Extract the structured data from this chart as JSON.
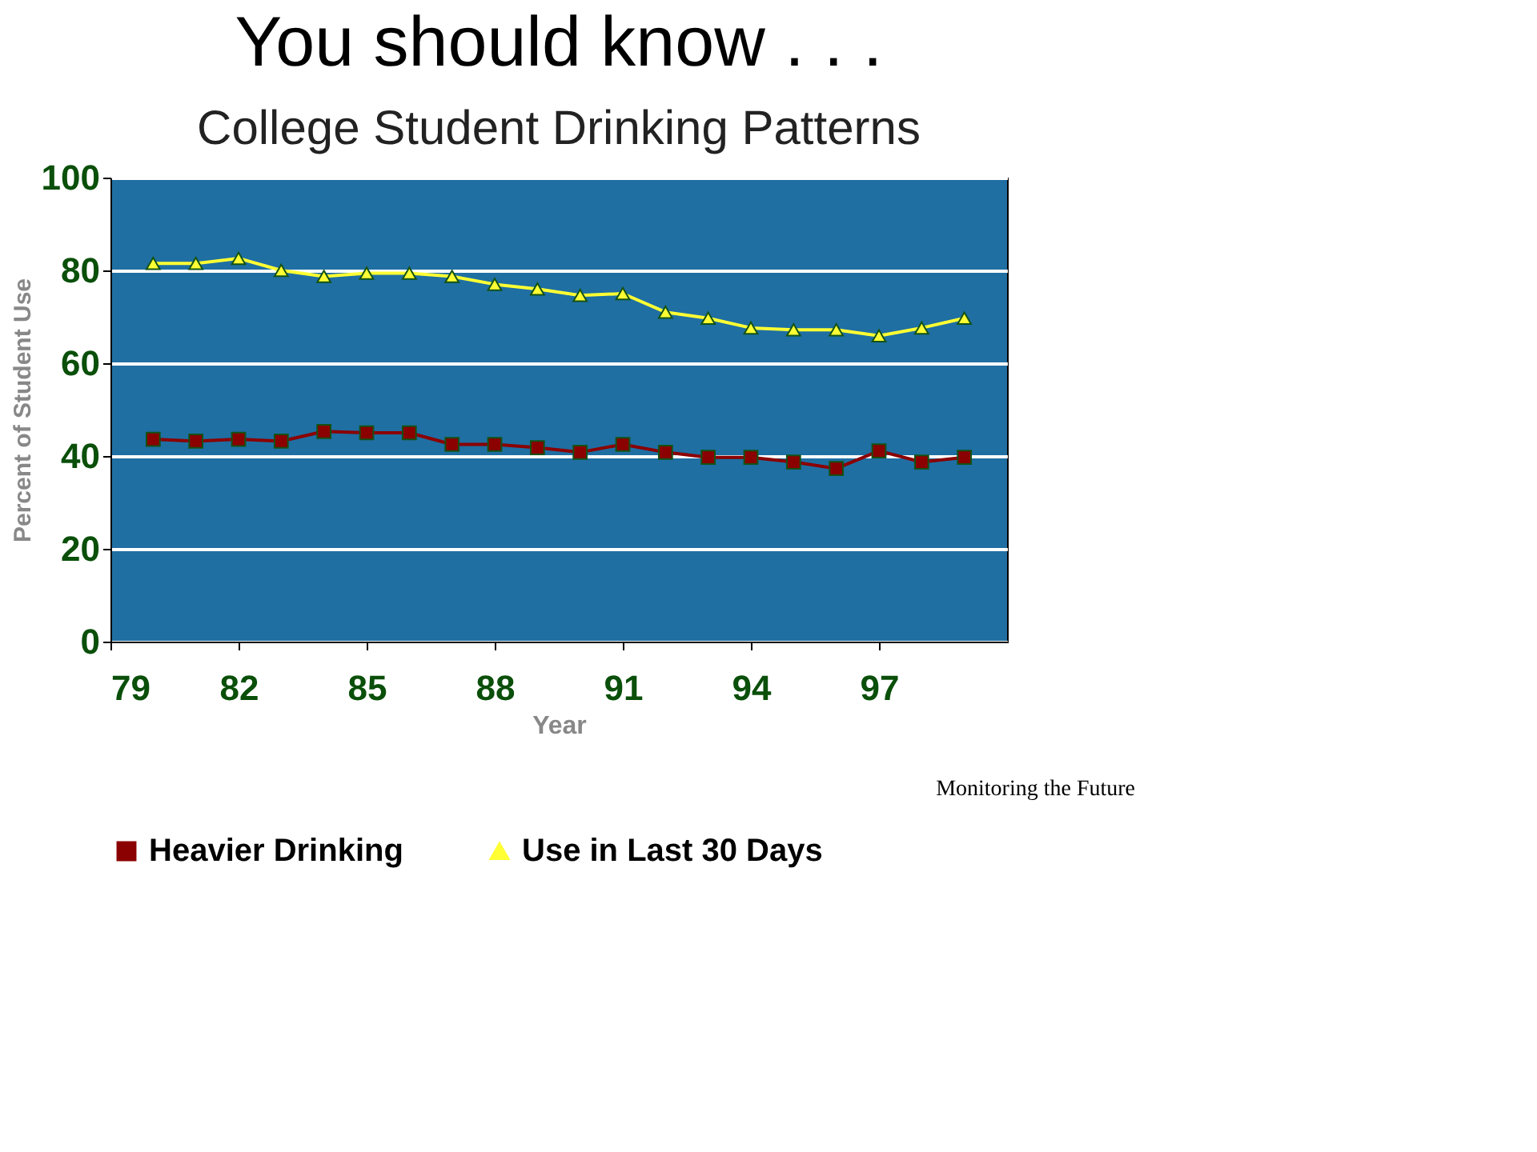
{
  "chart_data": {
    "type": "line",
    "title": "You should know . . .",
    "subtitle": "College Student Drinking Patterns",
    "xlabel": "Year",
    "ylabel": "Percent of Student Use",
    "x": [
      80,
      81,
      82,
      83,
      84,
      85,
      86,
      87,
      88,
      89,
      90,
      91,
      92,
      93,
      94,
      95,
      96,
      97,
      98,
      99
    ],
    "series": [
      {
        "name": "Heavier Drinking",
        "color": "#8b0000",
        "marker": "square",
        "values": [
          43.6,
          43.2,
          43.6,
          43.2,
          45.3,
          45,
          45,
          42.5,
          42.5,
          41.8,
          40.8,
          42.5,
          40.8,
          39.7,
          39.7,
          38.7,
          37.3,
          41.1,
          38.7,
          39.7
        ]
      },
      {
        "name": "Use in Last 30 Days",
        "color": "#ffff33",
        "marker": "triangle",
        "values": [
          81.5,
          81.5,
          82.6,
          80,
          78.7,
          79.4,
          79.4,
          78.7,
          77,
          76,
          74.6,
          75,
          71,
          69.7,
          67.6,
          67.2,
          67.2,
          65.9,
          67.6,
          69.7
        ]
      }
    ],
    "xlim": [
      79,
      100
    ],
    "xticks": [
      79,
      82,
      85,
      88,
      91,
      94,
      97
    ],
    "ylim": [
      0,
      100
    ],
    "yticks": [
      0,
      20,
      40,
      60,
      80,
      100
    ],
    "grid": "y",
    "legend": "bottom",
    "line_style": "solid",
    "annotations": [
      "Monitoring the Future"
    ]
  }
}
